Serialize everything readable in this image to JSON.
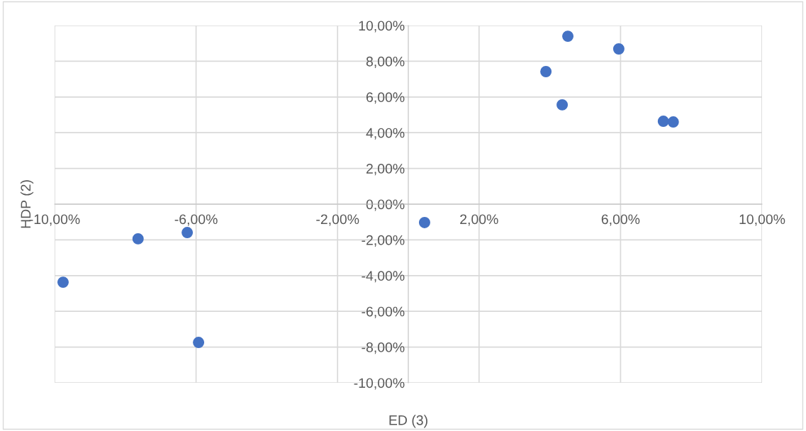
{
  "chart_data": {
    "type": "scatter",
    "xlabel": "ED (3)",
    "ylabel": "HDP (2)",
    "series": [
      {
        "color": "#4472c4",
        "x": [
          -9.76,
          -7.64,
          -6.25,
          -5.93,
          0.46,
          3.89,
          4.51,
          4.35,
          5.95,
          7.21,
          7.49
        ],
        "values": [
          -4.37,
          -1.94,
          -1.59,
          -7.74,
          -1.03,
          7.42,
          9.4,
          5.56,
          8.69,
          4.64,
          4.6
        ]
      }
    ],
    "marker": "circle",
    "grid": true,
    "legend": false,
    "xlim": [
      -10,
      10
    ],
    "ylim": [
      -10,
      10
    ],
    "xticks": [
      {
        "value": -10,
        "label": "-10,00%"
      },
      {
        "value": -6,
        "label": "-6,00%"
      },
      {
        "value": -2,
        "label": "-2,00%"
      },
      {
        "value": 2,
        "label": "2,00%"
      },
      {
        "value": 6,
        "label": "6,00%"
      },
      {
        "value": 10,
        "label": "10,00%"
      }
    ],
    "yticks": [
      {
        "value": -10,
        "label": "-10,00%"
      },
      {
        "value": -8,
        "label": "-8,00%"
      },
      {
        "value": -6,
        "label": "-6,00%"
      },
      {
        "value": -4,
        "label": "-4,00%"
      },
      {
        "value": -2,
        "label": "-2,00%"
      },
      {
        "value": 0,
        "label": "0,00%"
      },
      {
        "value": 2,
        "label": "2,00%"
      },
      {
        "value": 4,
        "label": "4,00%"
      },
      {
        "value": 6,
        "label": "6,00%"
      },
      {
        "value": 8,
        "label": "8,00%"
      },
      {
        "value": 10,
        "label": "10,00%"
      }
    ]
  }
}
